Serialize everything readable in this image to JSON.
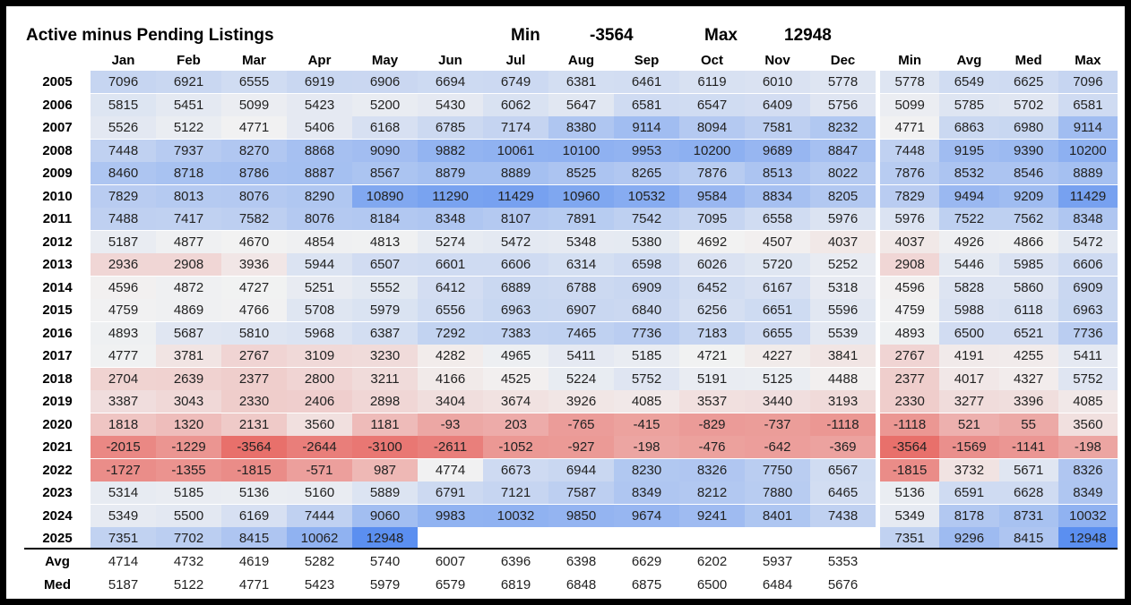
{
  "title": "Active minus Pending Listings",
  "min_label": "Min",
  "min_value": "-3564",
  "max_label": "Max",
  "max_value": "12948",
  "chart_data": {
    "type": "heatmap",
    "title": "Active minus Pending Listings",
    "columns": [
      "Jan",
      "Feb",
      "Mar",
      "Apr",
      "May",
      "Jun",
      "Jul",
      "Aug",
      "Sep",
      "Oct",
      "Nov",
      "Dec"
    ],
    "summary_columns": [
      "Min",
      "Avg",
      "Med",
      "Max"
    ],
    "color_scale": {
      "low": "#e8706b",
      "mid": "#f2f2f2",
      "high": "#5b8ff0",
      "min": -3564,
      "max": 12948
    },
    "rows": [
      {
        "label": "2005",
        "values": [
          7096,
          6921,
          6555,
          6919,
          6906,
          6694,
          6749,
          6381,
          6461,
          6119,
          6010,
          5778
        ],
        "summary": [
          5778,
          6549,
          6625,
          7096
        ]
      },
      {
        "label": "2006",
        "values": [
          5815,
          5451,
          5099,
          5423,
          5200,
          5430,
          6062,
          5647,
          6581,
          6547,
          6409,
          5756
        ],
        "summary": [
          5099,
          5785,
          5702,
          6581
        ]
      },
      {
        "label": "2007",
        "values": [
          5526,
          5122,
          4771,
          5406,
          6168,
          6785,
          7174,
          8380,
          9114,
          8094,
          7581,
          8232
        ],
        "summary": [
          4771,
          6863,
          6980,
          9114
        ]
      },
      {
        "label": "2008",
        "values": [
          7448,
          7937,
          8270,
          8868,
          9090,
          9882,
          10061,
          10100,
          9953,
          10200,
          9689,
          8847
        ],
        "summary": [
          7448,
          9195,
          9390,
          10200
        ]
      },
      {
        "label": "2009",
        "values": [
          8460,
          8718,
          8786,
          8887,
          8567,
          8879,
          8889,
          8525,
          8265,
          7876,
          8513,
          8022
        ],
        "summary": [
          7876,
          8532,
          8546,
          8889
        ]
      },
      {
        "label": "2010",
        "values": [
          7829,
          8013,
          8076,
          8290,
          10890,
          11290,
          11429,
          10960,
          10532,
          9584,
          8834,
          8205
        ],
        "summary": [
          7829,
          9494,
          9209,
          11429
        ]
      },
      {
        "label": "2011",
        "values": [
          7488,
          7417,
          7582,
          8076,
          8184,
          8348,
          8107,
          7891,
          7542,
          7095,
          6558,
          5976
        ],
        "summary": [
          5976,
          7522,
          7562,
          8348
        ]
      },
      {
        "label": "2012",
        "values": [
          5187,
          4877,
          4670,
          4854,
          4813,
          5274,
          5472,
          5348,
          5380,
          4692,
          4507,
          4037
        ],
        "summary": [
          4037,
          4926,
          4866,
          5472
        ]
      },
      {
        "label": "2013",
        "values": [
          2936,
          2908,
          3936,
          5944,
          6507,
          6601,
          6606,
          6314,
          6598,
          6026,
          5720,
          5252
        ],
        "summary": [
          2908,
          5446,
          5985,
          6606
        ]
      },
      {
        "label": "2014",
        "values": [
          4596,
          4872,
          4727,
          5251,
          5552,
          6412,
          6889,
          6788,
          6909,
          6452,
          6167,
          5318
        ],
        "summary": [
          4596,
          5828,
          5860,
          6909
        ]
      },
      {
        "label": "2015",
        "values": [
          4759,
          4869,
          4766,
          5708,
          5979,
          6556,
          6963,
          6907,
          6840,
          6256,
          6651,
          5596
        ],
        "summary": [
          4759,
          5988,
          6118,
          6963
        ]
      },
      {
        "label": "2016",
        "values": [
          4893,
          5687,
          5810,
          5968,
          6387,
          7292,
          7383,
          7465,
          7736,
          7183,
          6655,
          5539
        ],
        "summary": [
          4893,
          6500,
          6521,
          7736
        ]
      },
      {
        "label": "2017",
        "values": [
          4777,
          3781,
          2767,
          3109,
          3230,
          4282,
          4965,
          5411,
          5185,
          4721,
          4227,
          3841
        ],
        "summary": [
          2767,
          4191,
          4255,
          5411
        ]
      },
      {
        "label": "2018",
        "values": [
          2704,
          2639,
          2377,
          2800,
          3211,
          4166,
          4525,
          5224,
          5752,
          5191,
          5125,
          4488
        ],
        "summary": [
          2377,
          4017,
          4327,
          5752
        ]
      },
      {
        "label": "2019",
        "values": [
          3387,
          3043,
          2330,
          2406,
          2898,
          3404,
          3674,
          3926,
          4085,
          3537,
          3440,
          3193
        ],
        "summary": [
          2330,
          3277,
          3396,
          4085
        ]
      },
      {
        "label": "2020",
        "values": [
          1818,
          1320,
          2131,
          3560,
          1181,
          -93,
          203,
          -765,
          -415,
          -829,
          -737,
          -1118
        ],
        "summary": [
          -1118,
          521,
          55,
          3560
        ]
      },
      {
        "label": "2021",
        "values": [
          -2015,
          -1229,
          -3564,
          -2644,
          -3100,
          -2611,
          -1052,
          -927,
          -198,
          -476,
          -642,
          -369
        ],
        "summary": [
          -3564,
          -1569,
          -1141,
          -198
        ]
      },
      {
        "label": "2022",
        "values": [
          -1727,
          -1355,
          -1815,
          -571,
          987,
          4774,
          6673,
          6944,
          8230,
          8326,
          7750,
          6567
        ],
        "summary": [
          -1815,
          3732,
          5671,
          8326
        ]
      },
      {
        "label": "2023",
        "values": [
          5314,
          5185,
          5136,
          5160,
          5889,
          6791,
          7121,
          7587,
          8349,
          8212,
          7880,
          6465
        ],
        "summary": [
          5136,
          6591,
          6628,
          8349
        ]
      },
      {
        "label": "2024",
        "values": [
          5349,
          5500,
          6169,
          7444,
          9060,
          9983,
          10032,
          9850,
          9674,
          9241,
          8401,
          7438
        ],
        "summary": [
          5349,
          8178,
          8731,
          10032
        ]
      },
      {
        "label": "2025",
        "values": [
          7351,
          7702,
          8415,
          10062,
          12948,
          null,
          null,
          null,
          null,
          null,
          null,
          null
        ],
        "summary": [
          7351,
          9296,
          8415,
          12948
        ]
      }
    ],
    "footer_rows": [
      {
        "label": "Avg",
        "values": [
          4714,
          4732,
          4619,
          5282,
          5740,
          6007,
          6396,
          6398,
          6629,
          6202,
          5937,
          5353
        ]
      },
      {
        "label": "Med",
        "values": [
          5187,
          5122,
          4771,
          5423,
          5979,
          6579,
          6819,
          6848,
          6875,
          6500,
          6484,
          5676
        ]
      }
    ]
  }
}
